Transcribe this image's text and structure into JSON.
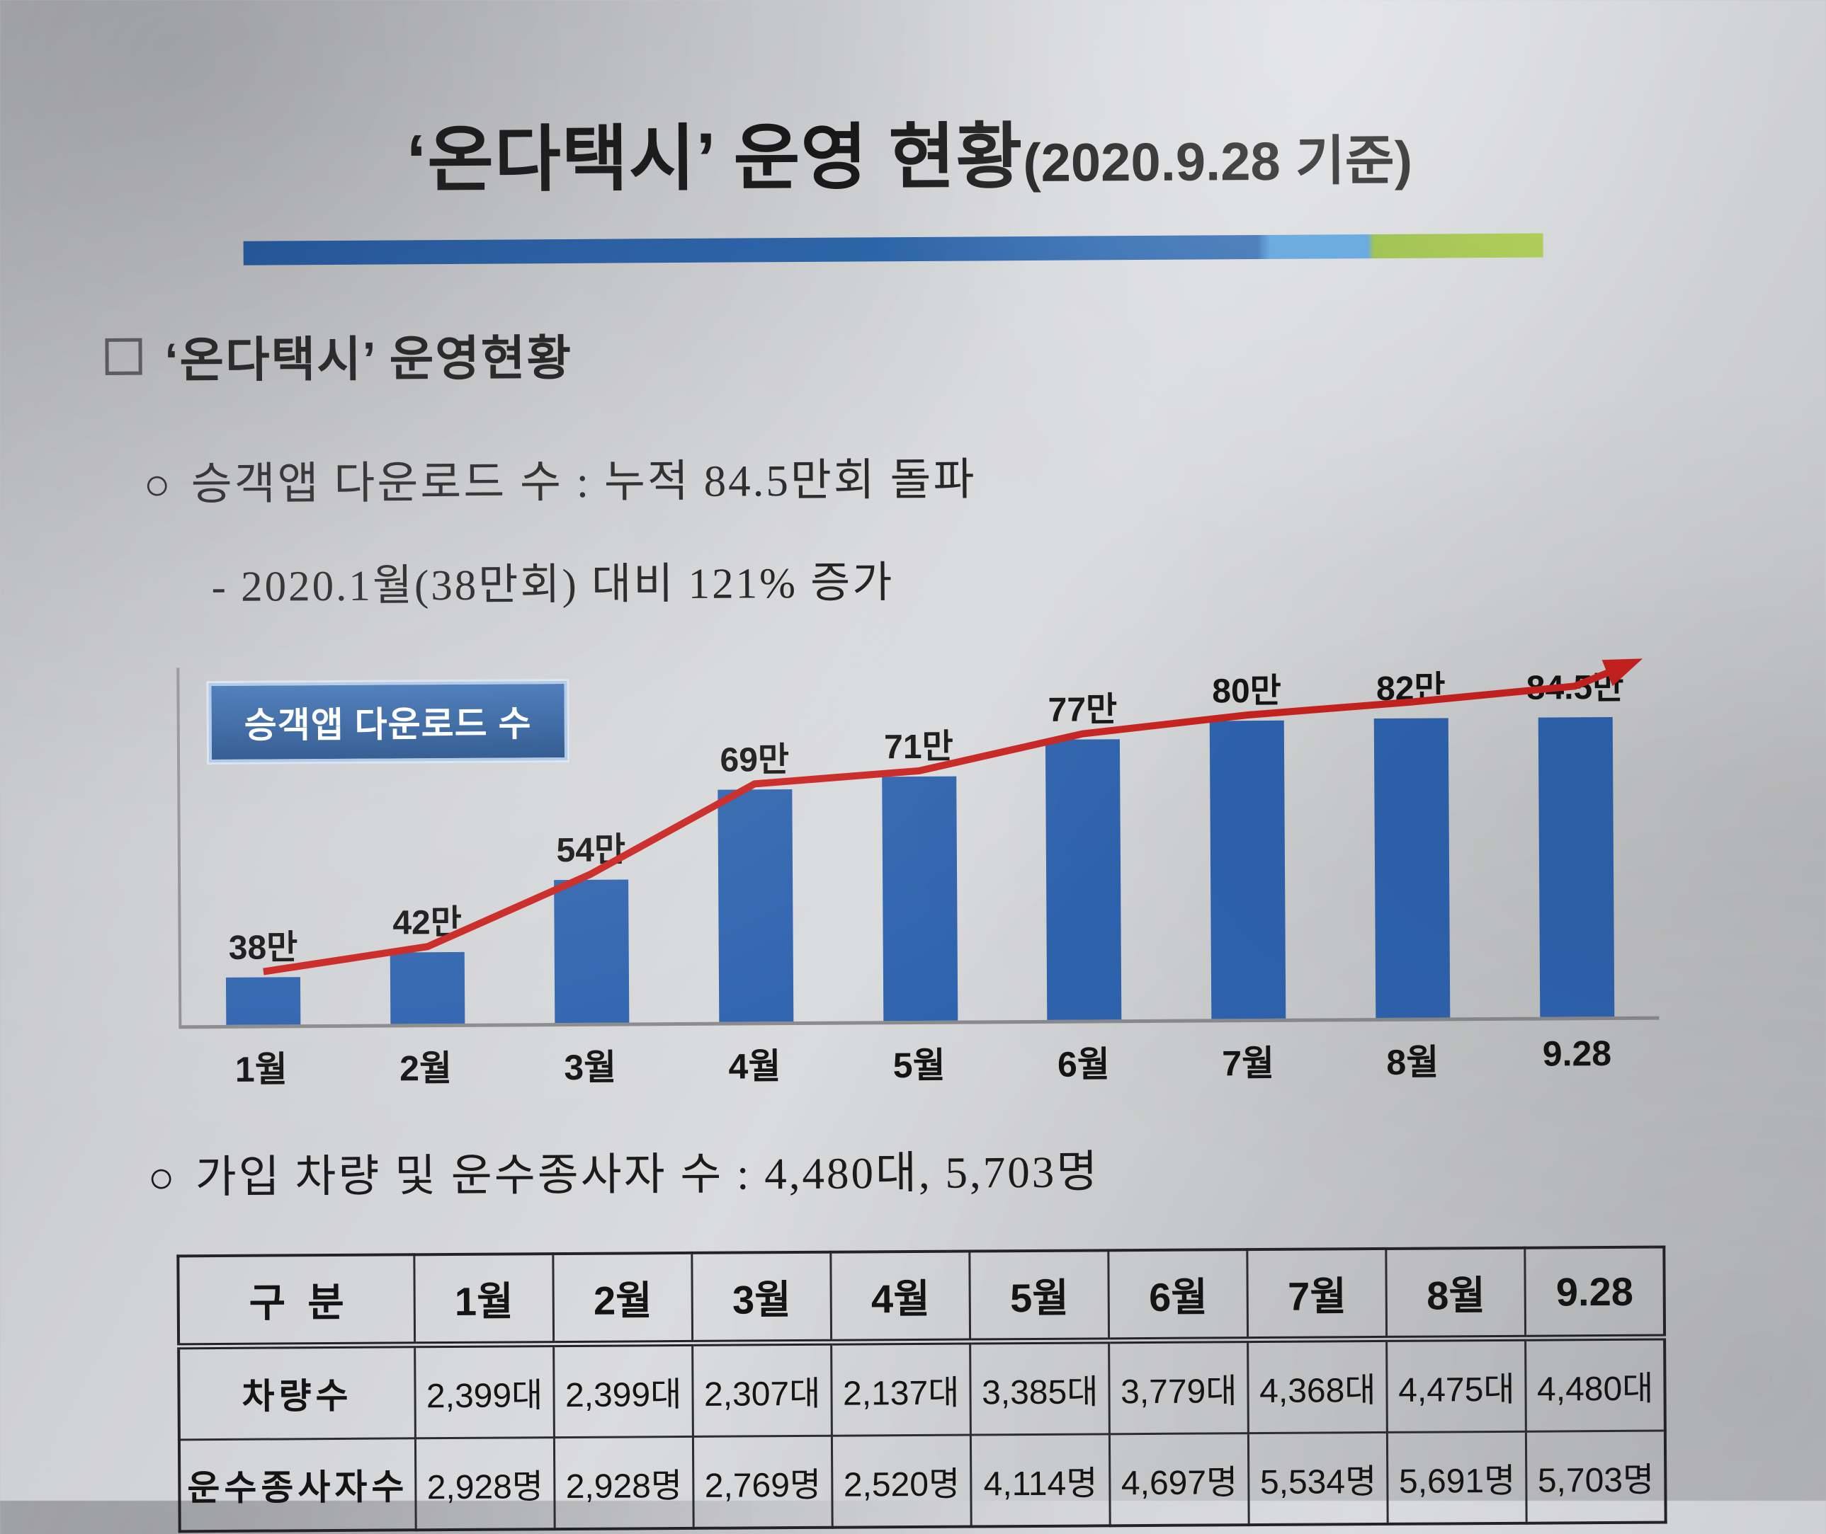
{
  "page": {
    "title_main": "‘온다택시’ 운영 현황",
    "title_sub": "(2020.9.28 기준)",
    "section_marker": "□",
    "section_heading": "‘온다택시’ 운영현황",
    "circle_marker": "○",
    "bullet_downloads": "승객앱 다운로드 수 : 누적 84.5만회 돌파",
    "sub_bullet": "- 2020.1월(38만회) 대비 121% 증가",
    "bullet_members": "가입 차량 및 운수종사자 수 : 4,480대, 5,703명"
  },
  "chart_data": {
    "type": "bar",
    "title": "승객앱 다운로드 수",
    "legend_label": "승객앱 다운로드 수",
    "categories": [
      "1월",
      "2월",
      "3월",
      "4월",
      "5월",
      "6월",
      "7월",
      "8월",
      "9.28"
    ],
    "values": [
      38,
      42,
      54,
      69,
      71,
      77,
      80,
      82,
      84.5
    ],
    "value_labels": [
      "38만",
      "42만",
      "54만",
      "69만",
      "71만",
      "77만",
      "80만",
      "82만",
      "84.5만"
    ],
    "unit": "만회",
    "ylim": [
      30,
      90
    ],
    "grid": false,
    "legend_position": "top-left",
    "annotations": [
      "red trend arrow rising from 38만 to 84.5만"
    ]
  },
  "table": {
    "headers": [
      "구  분",
      "1월",
      "2월",
      "3월",
      "4월",
      "5월",
      "6월",
      "7월",
      "8월",
      "9.28"
    ],
    "rows": [
      {
        "label": "차량수",
        "values": [
          "2,399대",
          "2,399대",
          "2,307대",
          "2,137대",
          "3,385대",
          "3,779대",
          "4,368대",
          "4,475대",
          "4,480대"
        ]
      },
      {
        "label": "운수종사자수",
        "values": [
          "2,928명",
          "2,928명",
          "2,769명",
          "2,520명",
          "4,114명",
          "4,697명",
          "5,534명",
          "5,691명",
          "5,703명"
        ]
      }
    ]
  },
  "colors": {
    "divider_blue_dark": "#14498f",
    "divider_blue": "#2b67ae",
    "divider_light_blue": "#4f9bd9",
    "divider_green": "#8fb933",
    "bar_blue": "#2e63ae",
    "trend_red": "#c8221f",
    "legend_bg_top": "#3a6fb3",
    "legend_bg_bottom": "#1f4c88",
    "legend_border": "#a9c5e5",
    "legend_text": "#ffffff"
  }
}
